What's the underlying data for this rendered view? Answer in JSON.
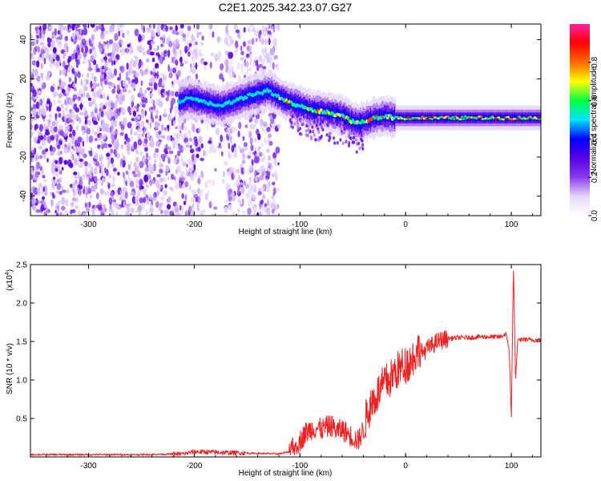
{
  "title": "C2E1.2025.342.23.07.G27",
  "chart_data": [
    {
      "type": "heatmap",
      "xlabel": "Height of straight line (km)",
      "ylabel": "Frequency (Hz)",
      "xlim": [
        -355,
        128
      ],
      "ylim": [
        -50,
        48
      ],
      "x_ticks": [
        -300,
        -200,
        -100,
        0,
        100
      ],
      "x_tick_labels": [
        "-300",
        "-200",
        "-100",
        "0",
        "100"
      ],
      "y_ticks": [
        -40,
        -20,
        0,
        20,
        40
      ],
      "y_tick_labels": [
        "-40",
        "-20",
        "0",
        "20",
        "40"
      ],
      "colorbar": {
        "label": "Normalized spectral amplitude",
        "range": [
          0,
          1
        ],
        "ticks": [
          0.0,
          0.2,
          0.4,
          0.6,
          0.8
        ],
        "tick_labels": [
          "0.0",
          "0.2",
          "0.4",
          "0.6",
          "0.8"
        ],
        "colors": [
          "#ffffff",
          "#e6d8fa",
          "#8a3cf0",
          "#5a00e6",
          "#0000ff",
          "#00e5ff",
          "#00ff40",
          "#ffff00",
          "#ff6a00",
          "#ff0000",
          "#ff1fa0"
        ]
      },
      "ridge": {
        "x": [
          -215,
          -205,
          -190,
          -175,
          -150,
          -130,
          -115,
          -100,
          -90,
          -75,
          -60,
          -50,
          -45,
          -40,
          -30,
          -20,
          -10,
          0,
          20,
          60,
          95,
          105,
          128
        ],
        "y": [
          8,
          10,
          8,
          6,
          11,
          14,
          9,
          6,
          4,
          3,
          1,
          -2,
          -3,
          -2,
          0,
          1,
          0,
          0,
          0,
          0,
          0,
          0,
          0
        ]
      },
      "noise_regions": [
        {
          "x": [
            -355,
            -120
          ],
          "y": [
            -50,
            48
          ],
          "level": "scattered purple noise"
        }
      ]
    },
    {
      "type": "line",
      "xlabel": "Height of straight line (km)",
      "ylabel": "SNR (10 * v/v)",
      "y_scale_label": "(x10",
      "y_scale_exp": "4",
      "xlim": [
        -355,
        128
      ],
      "ylim": [
        0,
        2.5
      ],
      "x_ticks": [
        -300,
        -200,
        -100,
        0,
        100
      ],
      "x_tick_labels": [
        "-300",
        "-200",
        "-100",
        "0",
        "100"
      ],
      "y_ticks": [
        0.5,
        1.0,
        1.5,
        2.0,
        2.5
      ],
      "y_tick_labels": [
        "0.5",
        "1.0",
        "1.5",
        "2.0",
        "2.5"
      ],
      "color": "#ee2222",
      "series": [
        {
          "x": [
            -355,
            -300,
            -250,
            -210,
            -200,
            -180,
            -150,
            -120,
            -105,
            -100,
            -95,
            -90,
            -85,
            -80,
            -75,
            -70,
            -65,
            -60,
            -55,
            -50,
            -45,
            -40,
            -35,
            -30,
            -25,
            -20,
            -15,
            -10,
            -5,
            0,
            5,
            10,
            15,
            20,
            25,
            30,
            35,
            40,
            50,
            60,
            70,
            80,
            90,
            95,
            98,
            100,
            102,
            104,
            106,
            110,
            120,
            128
          ],
          "y": [
            0.03,
            0.03,
            0.03,
            0.04,
            0.07,
            0.06,
            0.05,
            0.04,
            0.08,
            0.15,
            0.25,
            0.3,
            0.32,
            0.3,
            0.33,
            0.35,
            0.28,
            0.3,
            0.25,
            0.2,
            0.15,
            0.3,
            0.5,
            0.65,
            0.75,
            0.85,
            0.9,
            1.0,
            1.05,
            1.1,
            1.15,
            1.25,
            1.35,
            1.4,
            1.45,
            1.5,
            1.52,
            1.54,
            1.55,
            1.55,
            1.56,
            1.56,
            1.56,
            1.6,
            1.4,
            0.5,
            2.5,
            1.0,
            1.5,
            1.53,
            1.52,
            1.52
          ]
        }
      ]
    }
  ]
}
